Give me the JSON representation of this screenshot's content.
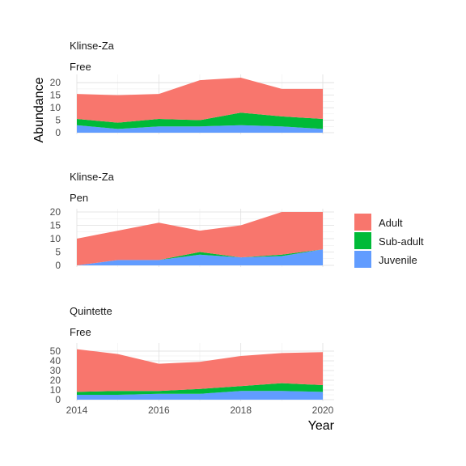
{
  "chart_data": {
    "type": "area",
    "stacked": true,
    "xlabel": "Year",
    "ylabel": "Abundance",
    "grid": true,
    "legend": {
      "placement": "right",
      "entries": [
        {
          "name": "Adult",
          "color": "#F8766D"
        },
        {
          "name": "Sub-adult",
          "color": "#00BA38"
        },
        {
          "name": "Juvenile",
          "color": "#619CFF"
        }
      ]
    },
    "x": [
      2014,
      2015,
      2016,
      2017,
      2018,
      2019,
      2020
    ],
    "xlim": [
      2014,
      2020
    ],
    "xticks": [
      2014,
      2016,
      2018,
      2020
    ],
    "panels": [
      {
        "strip_top": "Klinse-Za",
        "strip_bottom": "Free",
        "ylim": [
          0,
          22
        ],
        "yticks": [
          0,
          5,
          10,
          15,
          20
        ],
        "series": [
          {
            "name": "Juvenile",
            "values": [
              3,
              1.5,
              2.5,
              2.5,
              3,
              2.5,
              1.5
            ]
          },
          {
            "name": "Sub-adult",
            "values": [
              2.5,
              2.5,
              3,
              2.5,
              5,
              4,
              4
            ]
          },
          {
            "name": "Adult",
            "values": [
              10,
              11,
              10,
              16,
              14,
              11,
              12
            ]
          }
        ]
      },
      {
        "strip_top": "Klinse-Za",
        "strip_bottom": "Pen",
        "ylim": [
          0,
          20
        ],
        "yticks": [
          0,
          5,
          10,
          15,
          20
        ],
        "series": [
          {
            "name": "Juvenile",
            "values": [
              0,
              2,
              2,
              4,
              3,
              3.5,
              6
            ]
          },
          {
            "name": "Sub-adult",
            "values": [
              0,
              0,
              0,
              1,
              0,
              0.5,
              0
            ]
          },
          {
            "name": "Adult",
            "values": [
              10,
              11,
              14,
              8,
              12,
              16,
              14
            ]
          }
        ]
      },
      {
        "strip_top": "Quintette",
        "strip_bottom": "Free",
        "ylim": [
          0,
          55
        ],
        "yticks": [
          0,
          10,
          20,
          30,
          40,
          50
        ],
        "series": [
          {
            "name": "Juvenile",
            "values": [
              5,
              5,
              6,
              6,
              9,
              9,
              8
            ]
          },
          {
            "name": "Sub-adult",
            "values": [
              3,
              4,
              3,
              5,
              5,
              8,
              7
            ]
          },
          {
            "name": "Adult",
            "values": [
              44,
              38,
              28,
              28,
              31,
              31,
              34
            ]
          }
        ]
      }
    ]
  }
}
